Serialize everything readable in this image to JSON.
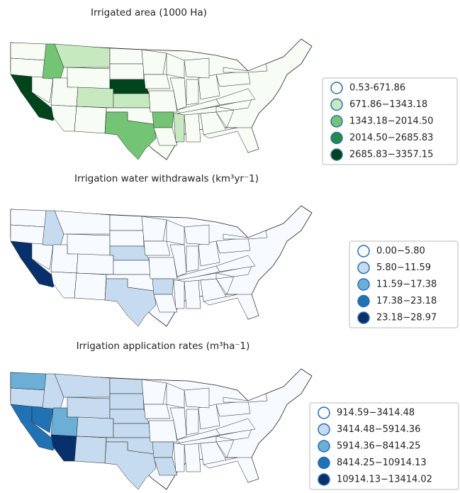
{
  "panels": [
    {
      "title": "Irrigated area (1000 Ha)",
      "legend": [
        {
          "label": "0.53-671.86",
          "color": "#f7fcf5"
        },
        {
          "label": "671.86−1343.18",
          "color": "#c7e9c0"
        },
        {
          "label": "1343.18−2014.50",
          "color": "#74c476"
        },
        {
          "label": "2014.50−2685.83",
          "color": "#238b45"
        },
        {
          "label": "2685.83−3357.15",
          "color": "#00441b"
        }
      ]
    },
    {
      "title": "Irrigation water withdrawals (km³yr⁻1)",
      "legend": [
        {
          "label": "0.00−5.80",
          "color": "#f7fbff"
        },
        {
          "label": "5.80−11.59",
          "color": "#c6dbef"
        },
        {
          "label": "11.59−17.38",
          "color": "#6baed6"
        },
        {
          "label": "17.38−23.18",
          "color": "#2171b5"
        },
        {
          "label": "23.18−28.97",
          "color": "#08306b"
        }
      ]
    },
    {
      "title": "Irrigation application rates (m³ha⁻1)",
      "legend": [
        {
          "label": "914.59−3414.48",
          "color": "#f7fbff"
        },
        {
          "label": "3414.48−5914.36",
          "color": "#c6dbef"
        },
        {
          "label": "5914.36−8414.25",
          "color": "#6baed6"
        },
        {
          "label": "8414.25−10914.13",
          "color": "#2171b5"
        },
        {
          "label": "10914.13−13414.02",
          "color": "#08306b"
        }
      ]
    }
  ]
}
